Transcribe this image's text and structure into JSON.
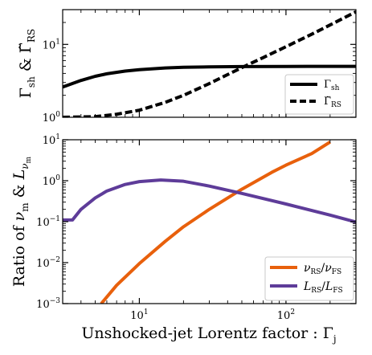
{
  "chart_data": [
    {
      "type": "line",
      "panel": "top",
      "x_scale": "log",
      "y_scale": "log",
      "xlim": [
        3,
        300
      ],
      "ylim": [
        1,
        30
      ],
      "ylabel": "Γsh & Γ̃RS",
      "ytick_labels": [
        {
          "value": 1,
          "mantissa": "10",
          "exp": "0"
        },
        {
          "value": 10,
          "mantissa": "10",
          "exp": "1"
        }
      ],
      "legend_position": "bottom-right",
      "series": [
        {
          "name": "Γsh",
          "style": "solid",
          "color": "#000000",
          "x": [
            3,
            4,
            5,
            6,
            8,
            10,
            15,
            20,
            30,
            50,
            100,
            200,
            300
          ],
          "y": [
            2.6,
            3.2,
            3.65,
            3.95,
            4.3,
            4.5,
            4.75,
            4.85,
            4.92,
            4.96,
            4.98,
            5.0,
            5.0
          ]
        },
        {
          "name": "Γ̃RS",
          "style": "dashed",
          "color": "#000000",
          "x": [
            3,
            5,
            7,
            10,
            15,
            20,
            30,
            50,
            70,
            100,
            150,
            200,
            300
          ],
          "y": [
            1.0,
            1.02,
            1.1,
            1.25,
            1.6,
            2.0,
            2.9,
            4.8,
            6.6,
            9.3,
            13.8,
            18.5,
            28.0
          ]
        }
      ]
    },
    {
      "type": "line",
      "panel": "bottom",
      "x_scale": "log",
      "y_scale": "log",
      "xlim": [
        3,
        300
      ],
      "ylim": [
        0.001,
        10
      ],
      "xlabel": "Unshocked-jet Lorentz factor : Γj",
      "ylabel": "Ratio of νm & Lνm",
      "xtick_labels": [
        {
          "value": 10,
          "mantissa": "10",
          "exp": "1"
        },
        {
          "value": 100,
          "mantissa": "10",
          "exp": "2"
        }
      ],
      "ytick_labels": [
        {
          "value": 0.001,
          "mantissa": "10",
          "exp": "−3"
        },
        {
          "value": 0.01,
          "mantissa": "10",
          "exp": "−2"
        },
        {
          "value": 0.1,
          "mantissa": "10",
          "exp": "−1"
        },
        {
          "value": 1,
          "mantissa": "10",
          "exp": "0"
        },
        {
          "value": 10,
          "mantissa": "10",
          "exp": "1"
        }
      ],
      "legend_position": "bottom-right",
      "series": [
        {
          "name": "νRS/νFS",
          "style": "solid",
          "color": "#e8600c",
          "x": [
            5.5,
            7,
            10,
            15,
            20,
            30,
            50,
            80,
            100,
            150,
            200
          ],
          "y": [
            0.001,
            0.0028,
            0.0095,
            0.033,
            0.075,
            0.2,
            0.62,
            1.6,
            2.4,
            4.6,
            8.8
          ]
        },
        {
          "name": "LRS/LFS",
          "style": "solid",
          "color": "#5e3c99",
          "x": [
            3,
            3.5,
            4,
            5,
            6,
            8,
            10,
            14,
            20,
            30,
            50,
            100,
            200,
            300
          ],
          "y": [
            0.11,
            0.11,
            0.2,
            0.38,
            0.56,
            0.81,
            0.95,
            1.04,
            0.97,
            0.74,
            0.49,
            0.27,
            0.145,
            0.098
          ]
        }
      ]
    }
  ]
}
